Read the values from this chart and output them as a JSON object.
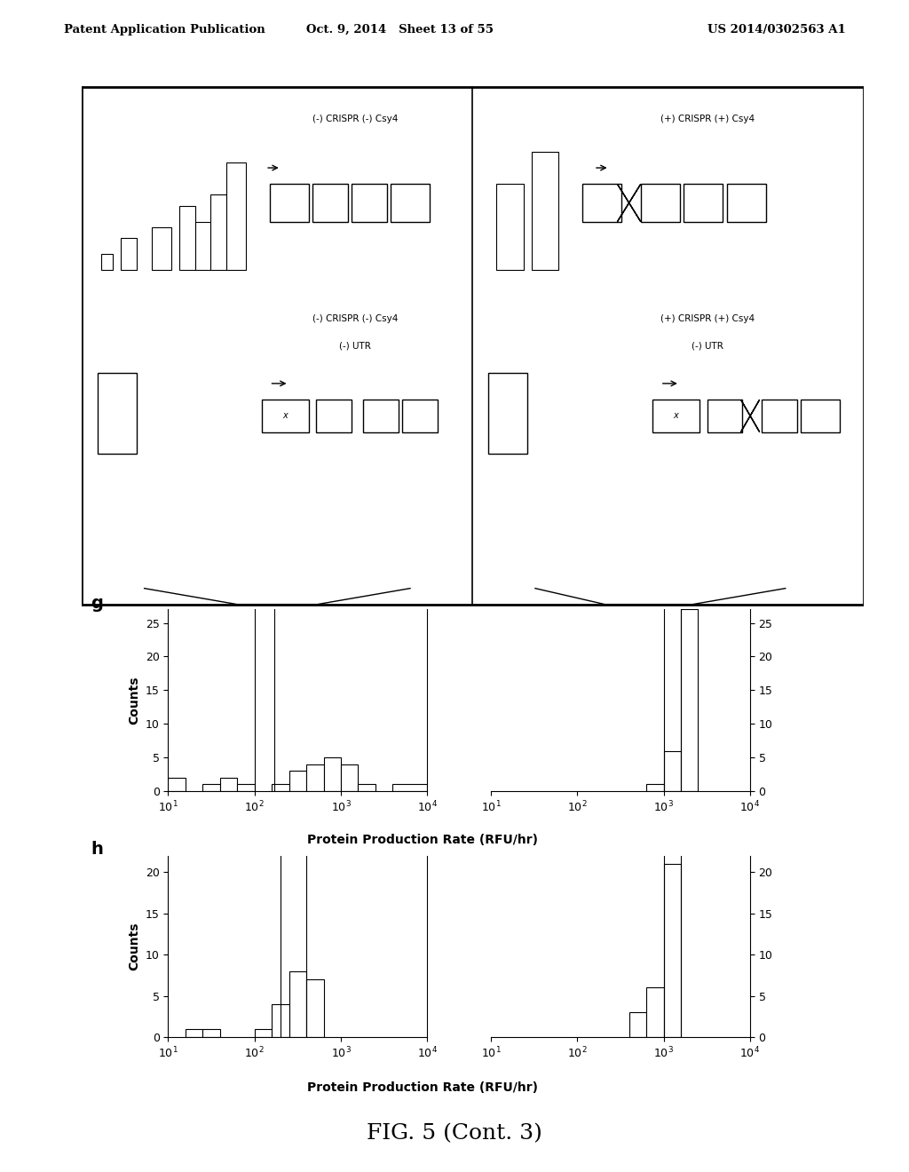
{
  "header_left": "Patent Application Publication",
  "header_mid": "Oct. 9, 2014   Sheet 13 of 55",
  "header_right": "US 2014/0302563 A1",
  "fig_label": "FIG. 5 (Cont. 3)",
  "panel_g_label": "g",
  "panel_h_label": "h",
  "ylabel": "Counts",
  "xlabel": "Protein Production Rate (RFU/hr)",
  "panel_g_left": {
    "vline1": 2.0,
    "vline2": 2.23,
    "ylim": [
      0,
      27
    ],
    "yticks": [
      0,
      5,
      10,
      15,
      20,
      25
    ],
    "bar_edges": [
      1.0,
      1.2,
      1.4,
      1.6,
      1.8,
      2.0,
      2.2,
      2.4,
      2.6,
      2.8,
      3.0,
      3.2,
      3.4,
      3.6,
      4.0
    ],
    "bar_heights": [
      2,
      0,
      1,
      2,
      1,
      0,
      1,
      3,
      4,
      5,
      4,
      1,
      0,
      1
    ]
  },
  "panel_g_right": {
    "vline1": 3.0,
    "vline2": 3.2,
    "ylim": [
      0,
      27
    ],
    "yticks": [
      0,
      5,
      10,
      15,
      20,
      25
    ],
    "bar_edges": [
      1.0,
      1.2,
      1.4,
      1.6,
      1.8,
      2.0,
      2.2,
      2.4,
      2.6,
      2.8,
      3.0,
      3.2,
      3.4,
      3.6,
      4.0
    ],
    "bar_heights": [
      0,
      0,
      0,
      0,
      0,
      0,
      0,
      0,
      0,
      1,
      6,
      27,
      0,
      0
    ]
  },
  "panel_h_left": {
    "vline1": 2.3,
    "vline2": 2.6,
    "ylim": [
      0,
      22
    ],
    "yticks": [
      0,
      5,
      10,
      15,
      20
    ],
    "bar_edges": [
      1.0,
      1.2,
      1.4,
      1.6,
      1.8,
      2.0,
      2.2,
      2.4,
      2.6,
      2.8,
      3.0,
      3.2,
      3.4,
      3.6,
      4.0
    ],
    "bar_heights": [
      0,
      1,
      1,
      0,
      0,
      1,
      4,
      8,
      7,
      0,
      0,
      0,
      0,
      0
    ]
  },
  "panel_h_right": {
    "vline1": 3.0,
    "vline2": 3.2,
    "ylim": [
      0,
      22
    ],
    "yticks": [
      0,
      5,
      10,
      15,
      20
    ],
    "bar_edges": [
      1.0,
      1.2,
      1.4,
      1.6,
      1.8,
      2.0,
      2.2,
      2.4,
      2.6,
      2.8,
      3.0,
      3.2,
      3.4,
      3.6,
      4.0
    ],
    "bar_heights": [
      0,
      0,
      0,
      0,
      0,
      0,
      0,
      0,
      3,
      6,
      21,
      0,
      0,
      0
    ]
  },
  "schem_tl_label": "(-) CRISPR (-) Csy4",
  "schem_tr_label": "(+) CRISPR (+) Csy4",
  "schem_bl_label1": "(-) CRISPR (-) Csy4",
  "schem_bl_label2": "(-) UTR",
  "schem_br_label1": "(+) CRISPR (+) Csy4",
  "schem_br_label2": "(-) UTR"
}
